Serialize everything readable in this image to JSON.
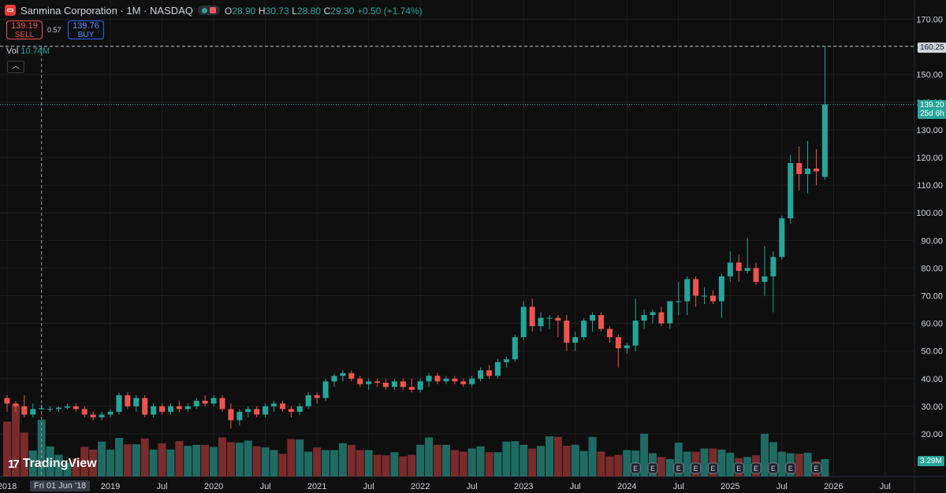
{
  "header": {
    "title": "Sanmina Corporation · 1M · NASDAQ",
    "ohlc": [
      {
        "k": "O",
        "v": "28.90"
      },
      {
        "k": "H",
        "v": "30.73"
      },
      {
        "k": "L",
        "v": "28.80"
      },
      {
        "k": "C",
        "v": "29.30"
      },
      {
        "k": "",
        "v": "+0.50 (+1.74%)"
      }
    ]
  },
  "trade": {
    "sell_price": "139.19",
    "sell_label": "SELL",
    "buy_price": "139.76",
    "buy_label": "BUY",
    "spread": "0.57"
  },
  "volume": {
    "label": "Vol",
    "value": "10.74M"
  },
  "brand": "TradingView",
  "tags": {
    "high": "160.25",
    "current_price": "139.20",
    "countdown": "25d 6h",
    "current_volume": "3.29M",
    "crosshair_date": "Fri 01 Jun '18"
  },
  "colors": {
    "up": "#26a69a",
    "down": "#ef5350",
    "up_volume": "#1f6b63",
    "down_volume": "#7a2b2c",
    "background": "#0f0f0f",
    "grid": "#1f1f1f"
  },
  "chart_data": {
    "type": "candlestick",
    "interval": "1M",
    "y_axis": {
      "ticks": [
        20,
        30,
        40,
        50,
        60,
        70,
        80,
        90,
        100,
        110,
        120,
        130,
        140,
        150,
        160,
        170
      ],
      "side": "right"
    },
    "x_axis": {
      "ticks": [
        {
          "label": "2018",
          "i": 0
        },
        {
          "label": "2019",
          "i": 12
        },
        {
          "label": "Jul",
          "i": 18
        },
        {
          "label": "2020",
          "i": 24
        },
        {
          "label": "Jul",
          "i": 30
        },
        {
          "label": "2021",
          "i": 36
        },
        {
          "label": "Jul",
          "i": 42
        },
        {
          "label": "2022",
          "i": 48
        },
        {
          "label": "Jul",
          "i": 54
        },
        {
          "label": "2023",
          "i": 60
        },
        {
          "label": "Jul",
          "i": 66
        },
        {
          "label": "2024",
          "i": 72
        },
        {
          "label": "Jul",
          "i": 78
        },
        {
          "label": "2025",
          "i": 84
        },
        {
          "label": "Jul",
          "i": 90
        },
        {
          "label": "2026",
          "i": 96
        },
        {
          "label": "Jul",
          "i": 102
        }
      ]
    },
    "candles": [
      [
        33,
        34,
        28,
        31
      ],
      [
        31,
        32,
        28,
        30
      ],
      [
        30,
        34,
        26,
        27
      ],
      [
        27,
        31,
        26,
        29
      ],
      [
        28.9,
        30.73,
        28.8,
        29.3
      ],
      [
        29,
        30,
        28,
        29
      ],
      [
        29,
        30,
        28,
        29.5
      ],
      [
        29.5,
        31,
        29,
        30
      ],
      [
        30,
        31,
        28,
        29
      ],
      [
        29,
        30,
        26,
        27
      ],
      [
        27,
        28,
        25,
        26
      ],
      [
        26,
        28,
        25,
        27
      ],
      [
        27,
        29,
        26,
        28
      ],
      [
        28,
        35,
        27,
        34
      ],
      [
        34,
        35,
        29,
        30
      ],
      [
        30,
        34,
        28,
        33
      ],
      [
        33,
        34,
        26,
        27
      ],
      [
        27,
        31,
        26,
        30
      ],
      [
        30,
        31,
        27,
        28
      ],
      [
        28,
        31,
        27,
        30
      ],
      [
        30,
        32,
        28,
        29
      ],
      [
        29,
        31,
        28,
        30
      ],
      [
        30,
        33,
        29,
        32
      ],
      [
        32,
        34,
        30,
        31
      ],
      [
        31,
        34,
        30,
        33
      ],
      [
        33,
        34,
        28,
        29
      ],
      [
        29,
        31,
        22,
        25
      ],
      [
        25,
        29,
        23,
        28
      ],
      [
        28,
        30,
        26,
        29
      ],
      [
        29,
        30,
        26,
        27
      ],
      [
        27,
        31,
        26,
        30
      ],
      [
        30,
        32,
        28,
        31
      ],
      [
        31,
        32,
        28,
        29
      ],
      [
        29,
        30,
        26,
        28
      ],
      [
        28,
        31,
        27,
        30
      ],
      [
        30,
        35,
        29,
        34
      ],
      [
        34,
        35,
        31,
        33
      ],
      [
        33,
        40,
        32,
        39
      ],
      [
        39,
        42,
        37,
        41
      ],
      [
        41,
        43,
        39,
        42
      ],
      [
        42,
        43,
        39,
        40
      ],
      [
        40,
        41,
        37,
        38
      ],
      [
        38,
        40,
        36,
        39
      ],
      [
        39,
        40,
        37,
        38.5
      ],
      [
        38.5,
        40,
        36,
        37
      ],
      [
        37,
        40,
        36,
        39
      ],
      [
        39,
        40,
        36,
        37
      ],
      [
        37,
        40,
        35,
        36
      ],
      [
        36,
        40,
        35,
        39
      ],
      [
        39,
        42,
        37,
        41
      ],
      [
        41,
        42,
        38,
        39
      ],
      [
        39,
        41,
        38,
        40
      ],
      [
        40,
        41,
        38,
        39
      ],
      [
        39,
        40,
        37,
        38
      ],
      [
        38,
        41,
        37,
        40
      ],
      [
        40,
        44,
        39,
        43
      ],
      [
        43,
        45,
        40,
        41
      ],
      [
        41,
        47,
        40,
        46
      ],
      [
        46,
        48,
        44,
        47
      ],
      [
        47,
        56,
        46,
        55
      ],
      [
        55,
        68,
        54,
        66
      ],
      [
        66,
        69,
        57,
        59
      ],
      [
        59,
        64,
        57,
        62
      ],
      [
        62,
        63,
        58,
        62
      ],
      [
        62,
        63,
        55,
        61
      ],
      [
        61,
        63,
        50,
        53
      ],
      [
        53,
        57,
        50,
        55
      ],
      [
        55,
        62,
        54,
        61
      ],
      [
        61,
        64,
        57,
        63
      ],
      [
        63,
        64,
        57,
        58
      ],
      [
        58,
        59,
        53,
        55
      ],
      [
        55,
        56,
        44,
        51
      ],
      [
        51,
        53,
        49,
        52
      ],
      [
        52,
        69,
        50,
        61
      ],
      [
        61,
        65,
        58,
        63
      ],
      [
        63,
        65,
        60,
        64
      ],
      [
        64,
        66,
        59,
        60
      ],
      [
        60,
        68,
        58,
        68
      ],
      [
        68,
        75,
        63,
        68
      ],
      [
        68,
        77,
        63,
        76
      ],
      [
        76,
        77,
        66,
        70
      ],
      [
        70,
        73,
        67,
        70
      ],
      [
        70,
        72,
        67,
        68
      ],
      [
        68,
        78,
        62,
        77
      ],
      [
        77,
        86,
        75,
        82
      ],
      [
        82,
        85,
        75,
        79
      ],
      [
        79,
        91,
        78,
        80
      ],
      [
        80,
        82,
        74,
        75
      ],
      [
        75,
        88,
        70,
        77
      ],
      [
        77,
        86,
        64,
        84
      ],
      [
        84,
        99,
        83,
        98
      ],
      [
        98,
        121,
        96,
        118
      ],
      [
        118,
        124,
        108,
        114
      ],
      [
        114,
        126,
        107,
        116
      ],
      [
        116,
        123,
        110,
        115
      ],
      [
        113,
        160.25,
        112,
        139.2
      ]
    ],
    "volume_millions": [
      10.4,
      13.6,
      8.3,
      4.9,
      10.74,
      5.7,
      4.1,
      2.6,
      3.4,
      5.6,
      5.1,
      6.6,
      5.1,
      7.3,
      6.1,
      6.1,
      7.2,
      5.1,
      6.3,
      5.1,
      6.7,
      5.8,
      6.0,
      6.0,
      5.6,
      7.4,
      6.5,
      6.4,
      6.8,
      5.7,
      5.5,
      5.0,
      4.3,
      7.1,
      7.0,
      4.7,
      5.5,
      5.0,
      5.0,
      6.3,
      6.0,
      5.0,
      5.0,
      4.1,
      4.0,
      4.6,
      3.8,
      4.1,
      6.0,
      7.4,
      6.0,
      6.0,
      5.0,
      4.7,
      5.3,
      5.7,
      4.6,
      4.6,
      6.6,
      6.7,
      6.0,
      5.3,
      5.8,
      7.6,
      7.5,
      5.8,
      6.0,
      4.8,
      7.5,
      4.7,
      3.8,
      4.1,
      5.0,
      4.9,
      8.1,
      4.4,
      3.7,
      3.3,
      6.4,
      4.7,
      4.7,
      5.3,
      5.3,
      5.1,
      4.5,
      3.5,
      3.7,
      4.0,
      8.1,
      6.5,
      4.7,
      4.4,
      4.3,
      4.5,
      2.9,
      3.29
    ],
    "high_line": 160.25,
    "current_line": 139.2,
    "earnings_marker_months": [
      73,
      75,
      78,
      80,
      82,
      85,
      87,
      89,
      91,
      94
    ]
  }
}
